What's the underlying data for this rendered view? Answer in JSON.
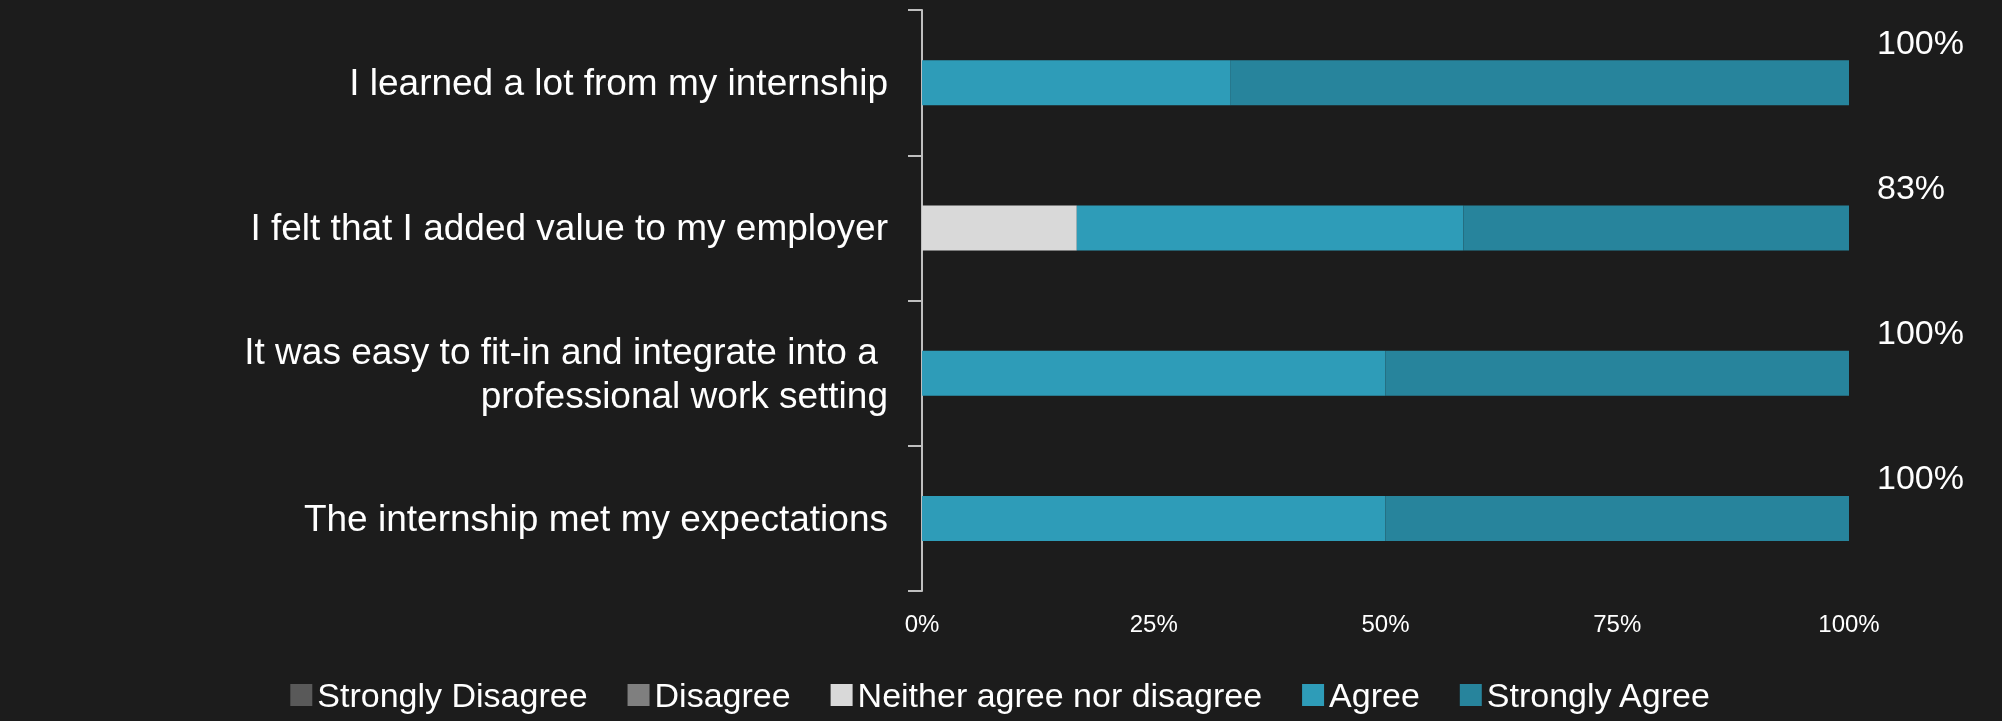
{
  "chart_data": {
    "type": "bar",
    "orientation": "horizontal",
    "stacked": true,
    "categories": [
      "I learned a lot from my internship",
      "I felt that I added value to my employer",
      "It was easy to fit-in and integrate into a professional work setting",
      "The internship met my expectations"
    ],
    "series": [
      {
        "name": "Strongly Disagree",
        "color": "#595959",
        "values": [
          0,
          0,
          0,
          0
        ]
      },
      {
        "name": "Disagree",
        "color": "#7f7f7f",
        "values": [
          0,
          0,
          0,
          0
        ]
      },
      {
        "name": "Neither agree nor disagree",
        "color": "#d9d9d9",
        "values": [
          0,
          16.7,
          0,
          0
        ]
      },
      {
        "name": "Agree",
        "color": "#2e9cb8",
        "values": [
          33.3,
          41.7,
          50,
          50
        ]
      },
      {
        "name": "Strongly Agree",
        "color": "#27849c",
        "values": [
          66.7,
          41.6,
          50,
          50
        ]
      }
    ],
    "xlim": [
      0,
      100
    ],
    "xticks": [
      {
        "value": 0,
        "label": "0%"
      },
      {
        "value": 25,
        "label": "25%"
      },
      {
        "value": 50,
        "label": "50%"
      },
      {
        "value": 75,
        "label": "75%"
      },
      {
        "value": 100,
        "label": "100%"
      }
    ],
    "annotations": [
      "100%",
      "83%",
      "100%",
      "100%"
    ],
    "grid": false,
    "legend": "bottom"
  }
}
